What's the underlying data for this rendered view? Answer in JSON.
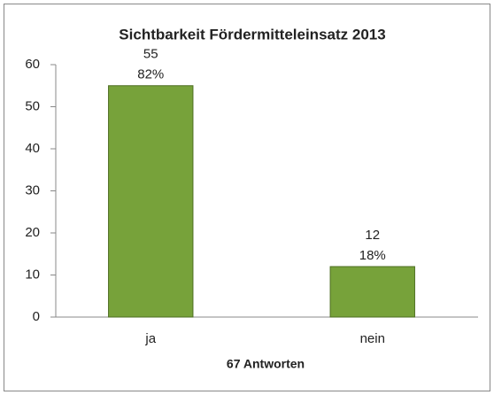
{
  "chart_data": {
    "type": "bar",
    "title": "Sichtbarkeit Fördermitteleinsatz 2013",
    "categories": [
      "ja",
      "nein"
    ],
    "values": [
      55,
      12
    ],
    "share_labels": [
      "82%",
      "18%"
    ],
    "x_label": "67 Antworten",
    "color": "#77a23a",
    "ylim": [
      0,
      60
    ],
    "yticks": [
      0,
      10,
      20,
      30,
      40,
      50,
      60
    ],
    "grid": false
  }
}
